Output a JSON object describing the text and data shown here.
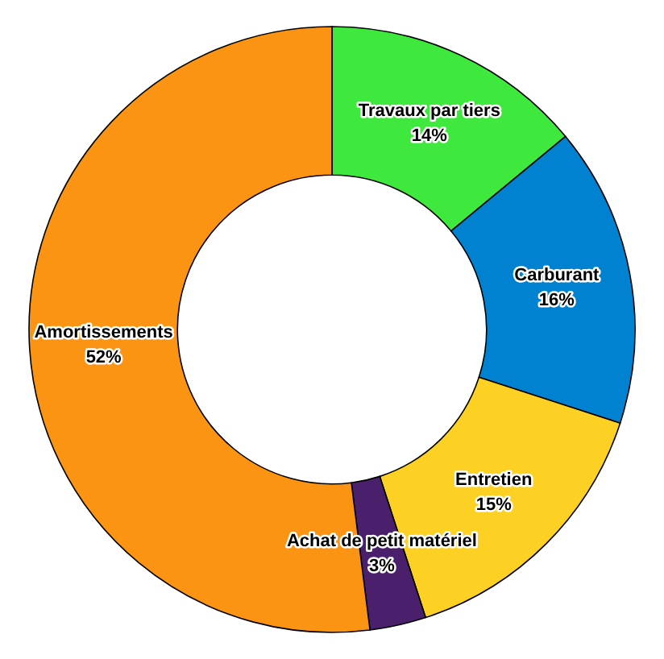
{
  "chart_data": {
    "type": "donut",
    "categories": [
      "Travaux par tiers",
      "Carburant",
      "Entretien",
      "Achat de petit matériel",
      "Amortissements"
    ],
    "values": [
      14,
      16,
      15,
      3,
      52
    ],
    "colors": [
      "#3fe83c",
      "#0082d1",
      "#fdd123",
      "#4a1f6c",
      "#fc9413"
    ],
    "value_labels": [
      "14%",
      "16%",
      "15%",
      "3%",
      "52%"
    ],
    "legend": false
  }
}
